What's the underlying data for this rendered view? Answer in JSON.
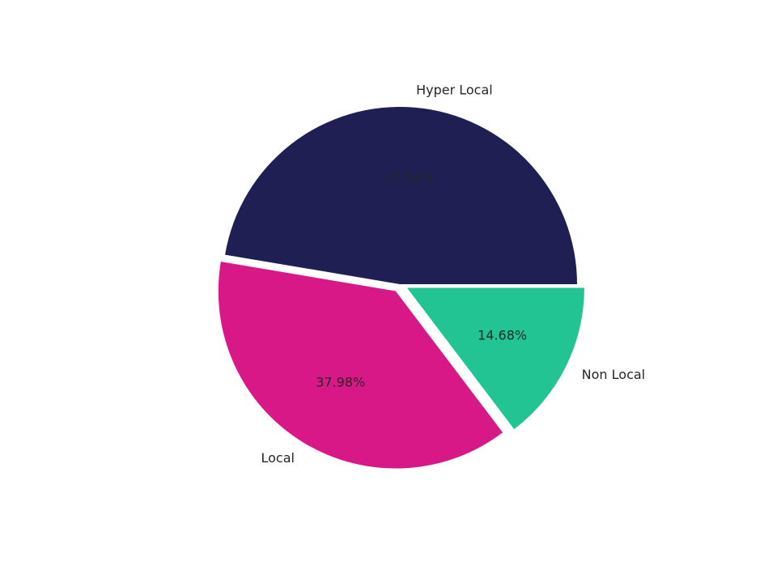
{
  "chart_data": {
    "type": "pie",
    "categories": [
      "Hyper Local",
      "Local",
      "Non Local"
    ],
    "values": [
      47.34,
      37.98,
      14.68
    ],
    "value_labels": [
      "47.34%",
      "37.98%",
      "14.68%"
    ],
    "colors": [
      "#1f1f53",
      "#d81887",
      "#23c493"
    ],
    "exploded": [
      false,
      true,
      true
    ],
    "start_angle_deg": 0,
    "direction": "counterclockwise",
    "legend": "none"
  }
}
